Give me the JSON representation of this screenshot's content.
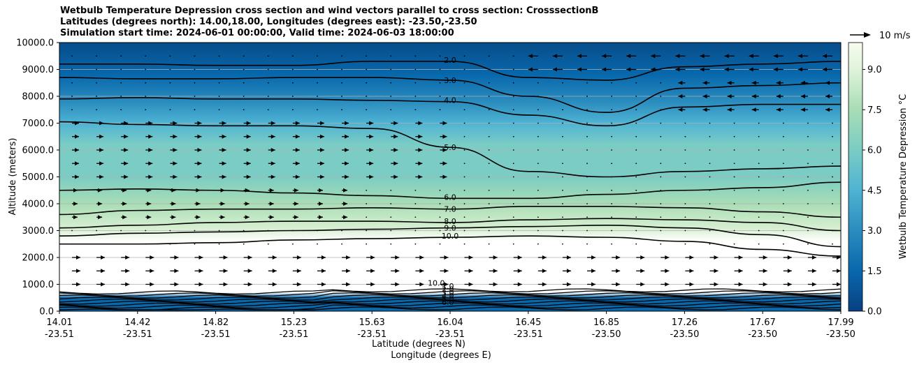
{
  "chart_data": {
    "type": "heatmap",
    "title_lines": [
      "Wetbulb Temperature Depression cross section and wind vectors parallel to cross section: CrosssectionB",
      "Latitudes (degrees north): 14.00,18.00, Longitudes (degrees east): -23.50,-23.50",
      "Simulation start time: 2024-06-01 00:00:00, Valid time: 2024-06-03 18:00:00"
    ],
    "xlabel": "Latitude (degrees N)",
    "xlabel2": "Longitude (degrees E)",
    "ylabel": "Altitude (meters)",
    "xlim": [
      14.01,
      17.99
    ],
    "ylim": [
      0,
      10000
    ],
    "x_ticks": [
      {
        "lat": "14.01",
        "lon": "-23.51"
      },
      {
        "lat": "14.42",
        "lon": "-23.51"
      },
      {
        "lat": "14.82",
        "lon": "-23.51"
      },
      {
        "lat": "15.23",
        "lon": "-23.51"
      },
      {
        "lat": "15.63",
        "lon": "-23.51"
      },
      {
        "lat": "16.04",
        "lon": "-23.51"
      },
      {
        "lat": "16.45",
        "lon": "-23.51"
      },
      {
        "lat": "16.85",
        "lon": "-23.50"
      },
      {
        "lat": "17.26",
        "lon": "-23.50"
      },
      {
        "lat": "17.67",
        "lon": "-23.50"
      },
      {
        "lat": "17.99",
        "lon": "-23.50"
      }
    ],
    "y_ticks": [
      "0.0",
      "1000.0",
      "2000.0",
      "3000.0",
      "4000.0",
      "5000.0",
      "6000.0",
      "7000.0",
      "8000.0",
      "9000.0",
      "10000.0"
    ],
    "y_tick_values": [
      0,
      1000,
      2000,
      3000,
      4000,
      5000,
      6000,
      7000,
      8000,
      9000,
      10000
    ],
    "grid": true,
    "colorbar": {
      "label": "Wetbulb Temperature Depression °C",
      "range": [
        0,
        10
      ],
      "ticks": [
        "0.0",
        "1.5",
        "3.0",
        "4.5",
        "6.0",
        "7.5",
        "9.0"
      ],
      "tick_values": [
        0,
        1.5,
        3.0,
        4.5,
        6.0,
        7.5,
        9.0
      ],
      "colormap": "GnBu_r"
    },
    "wind_key": {
      "label": "10 m/s"
    },
    "contour_levels": [
      {
        "label": "2.0",
        "altitudes": [
          9200,
          9200,
          9150,
          9150,
          9300,
          9300,
          8700,
          8600,
          9100,
          9200,
          9300
        ]
      },
      {
        "label": "3.0",
        "altitudes": [
          8700,
          8650,
          8650,
          8700,
          8700,
          8600,
          8000,
          7400,
          8300,
          8400,
          8500
        ]
      },
      {
        "label": "4.0",
        "altitudes": [
          7900,
          7950,
          7900,
          7900,
          7850,
          7800,
          7300,
          6900,
          7600,
          7700,
          7700
        ]
      },
      {
        "label": "5.0",
        "altitudes": [
          7050,
          6950,
          6900,
          6900,
          6800,
          6100,
          5200,
          5000,
          5200,
          5300,
          5400
        ]
      },
      {
        "label": "6.0",
        "altitudes": [
          4500,
          4550,
          4500,
          4400,
          4300,
          4200,
          4200,
          4350,
          4500,
          4600,
          4800
        ]
      },
      {
        "label": "7.0",
        "altitudes": [
          3600,
          3750,
          3800,
          3800,
          3850,
          3800,
          3900,
          3900,
          3850,
          3700,
          3500
        ]
      },
      {
        "label": "8.0",
        "altitudes": [
          3100,
          3200,
          3300,
          3350,
          3350,
          3300,
          3400,
          3450,
          3400,
          3300,
          3000
        ]
      },
      {
        "label": "9.0",
        "altitudes": [
          2800,
          2900,
          2950,
          3000,
          3050,
          3100,
          3150,
          3200,
          3100,
          2850,
          2400
        ]
      },
      {
        "label": "10.0",
        "altitudes": [
          2500,
          2500,
          2550,
          2650,
          2700,
          2750,
          2800,
          2750,
          2600,
          2300,
          2050
        ]
      }
    ],
    "low_level_labels": [
      "10.0",
      "1.0",
      "2.0",
      "3.0",
      "4.0",
      "5.0",
      "6.0"
    ]
  }
}
